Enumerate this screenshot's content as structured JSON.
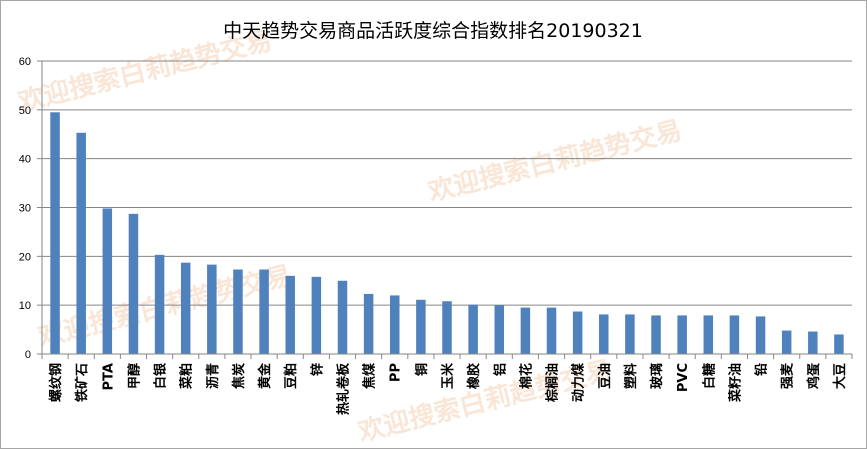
{
  "chart_data": {
    "type": "bar",
    "title": "中天趋势交易商品活跃度综合指数排名20190321",
    "xlabel": "",
    "ylabel": "",
    "ylim": [
      0,
      60
    ],
    "yticks": [
      0,
      10,
      20,
      30,
      40,
      50,
      60
    ],
    "grid": true,
    "legend": "none",
    "bar_color": "#4f81bd",
    "categories": [
      "螺纹钢",
      "铁矿石",
      "PTA",
      "甲醇",
      "白银",
      "菜粕",
      "沥青",
      "焦炭",
      "黄金",
      "豆粕",
      "锌",
      "热轧卷板",
      "焦煤",
      "PP",
      "铜",
      "玉米",
      "橡胶",
      "铝",
      "棉花",
      "棕榈油",
      "动力煤",
      "豆油",
      "塑料",
      "玻璃",
      "PVC",
      "白糖",
      "菜籽油",
      "铅",
      "强麦",
      "鸡蛋",
      "大豆"
    ],
    "values": [
      49.5,
      45.3,
      29.8,
      28.7,
      20.3,
      18.7,
      18.3,
      17.3,
      17.3,
      16.0,
      15.8,
      15.0,
      12.3,
      12.0,
      11.1,
      10.8,
      10.1,
      10.0,
      9.5,
      9.5,
      8.7,
      8.1,
      8.1,
      7.9,
      7.9,
      7.9,
      7.9,
      7.7,
      4.8,
      4.6,
      4.0
    ]
  },
  "watermark": {
    "text": "欢迎搜索白莉趋势交易",
    "color": "#f2c9a6"
  }
}
